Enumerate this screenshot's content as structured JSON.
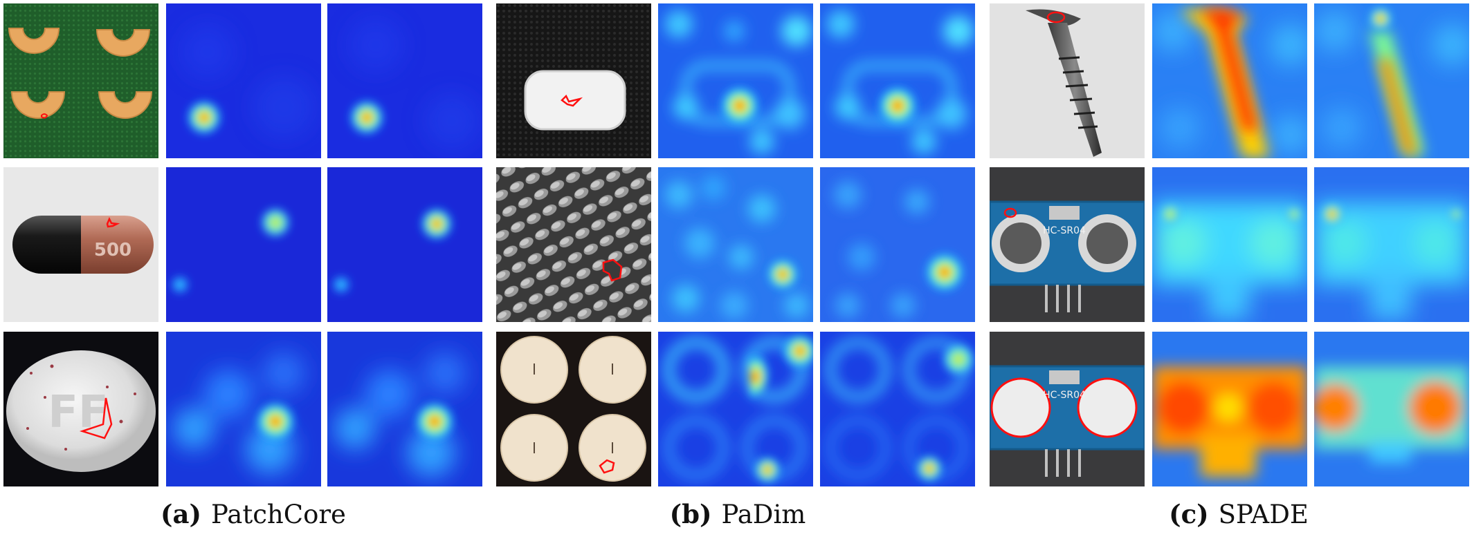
{
  "figure": {
    "groups": [
      {
        "id": "a",
        "label": "(a)",
        "method": "PatchCore",
        "rows": [
          {
            "object": "pasta",
            "views": [
              "input",
              "heatmap",
              "heatmap"
            ]
          },
          {
            "object": "capsule",
            "imprint": "500",
            "views": [
              "input",
              "heatmap",
              "heatmap"
            ]
          },
          {
            "object": "pill",
            "imprint": "FF",
            "views": [
              "input",
              "heatmap",
              "heatmap"
            ]
          }
        ]
      },
      {
        "id": "b",
        "label": "(b)",
        "method": "PaDim",
        "rows": [
          {
            "object": "gum",
            "views": [
              "input",
              "heatmap",
              "heatmap"
            ]
          },
          {
            "object": "grid",
            "views": [
              "input",
              "heatmap",
              "heatmap"
            ]
          },
          {
            "object": "candles",
            "views": [
              "input",
              "heatmap",
              "heatmap"
            ]
          }
        ]
      },
      {
        "id": "c",
        "label": "(c)",
        "method": "SPADE",
        "rows": [
          {
            "object": "screw",
            "views": [
              "input",
              "heatmap",
              "heatmap"
            ]
          },
          {
            "object": "sensor",
            "imprint": "HC-SR04",
            "views": [
              "input",
              "heatmap",
              "heatmap"
            ]
          },
          {
            "object": "sensor",
            "imprint": "HC-SR04",
            "views": [
              "input",
              "heatmap",
              "heatmap"
            ]
          }
        ]
      }
    ],
    "colors": {
      "defect_outline": "#ff1010",
      "heat_low": "#1020d8",
      "heat_mid": "#40e0ff",
      "heat_high": "#ff2000"
    }
  }
}
